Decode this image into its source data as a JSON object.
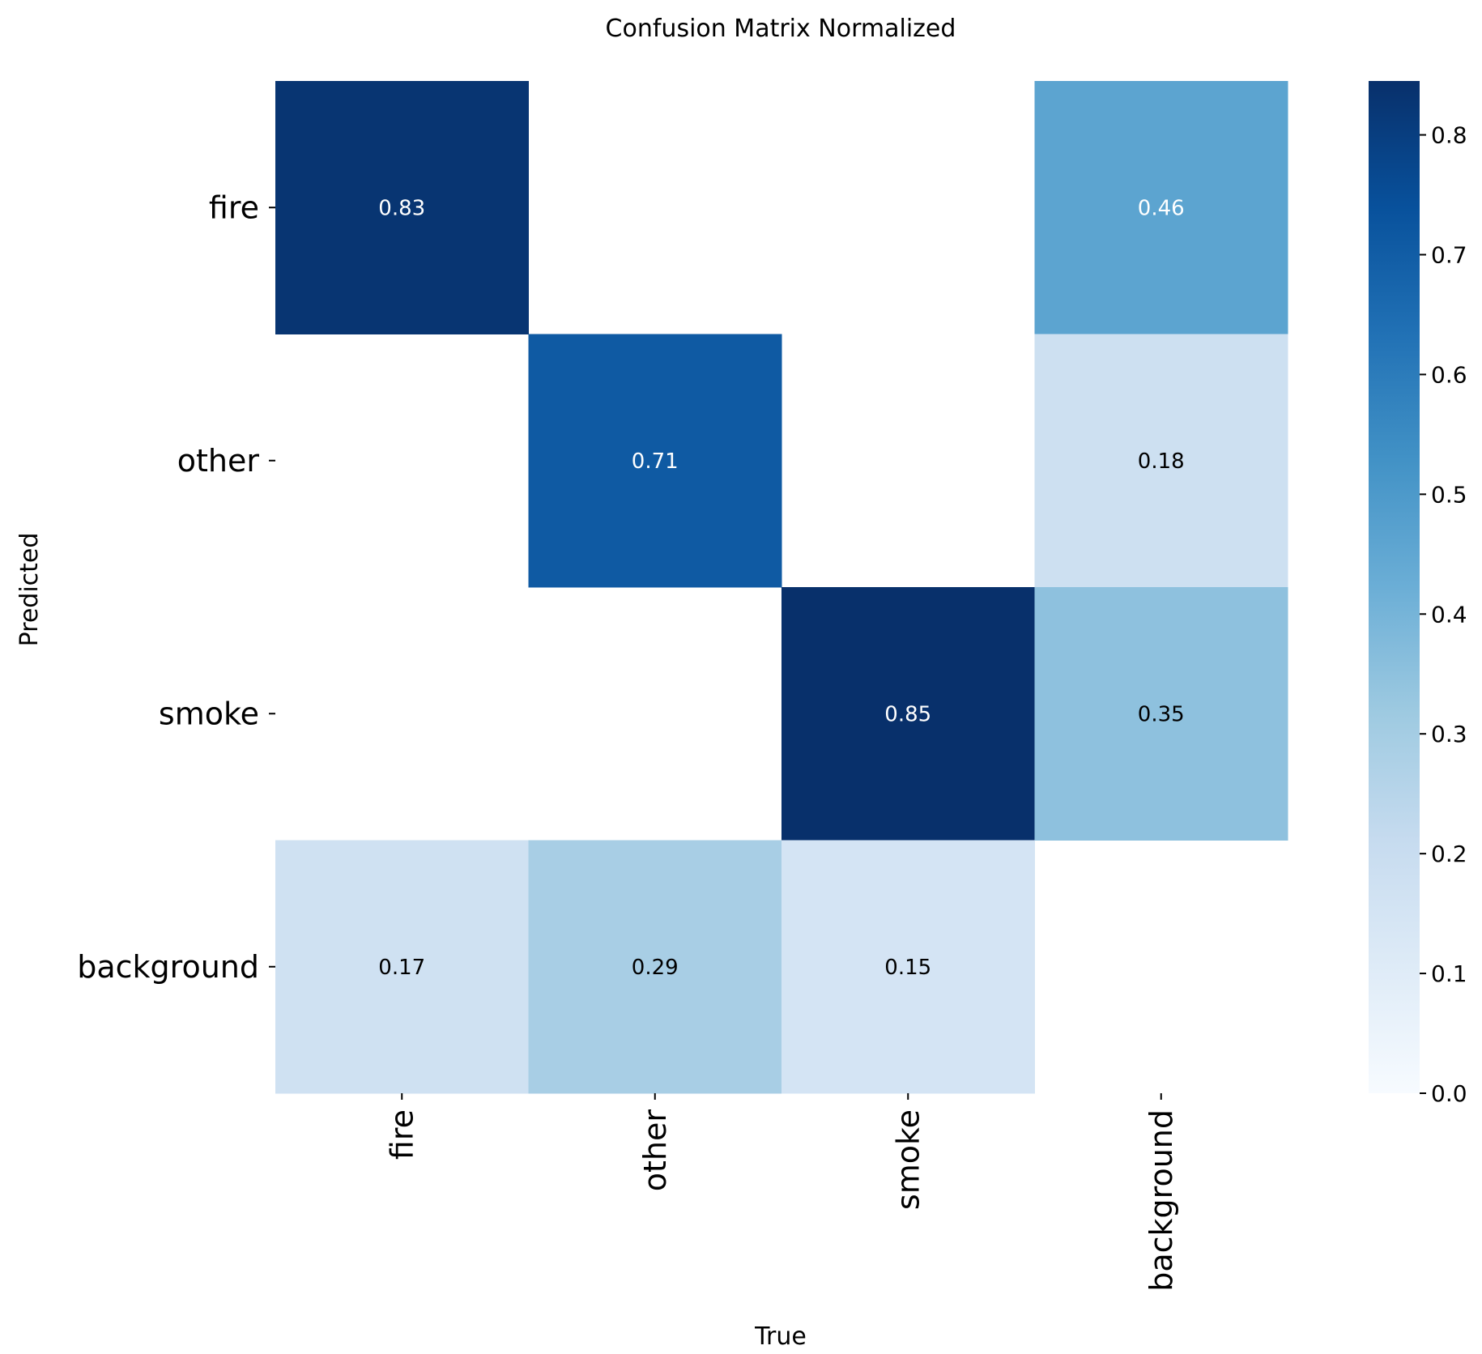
{
  "chart_data": {
    "type": "heatmap",
    "title": "Confusion Matrix Normalized",
    "xlabel": "True",
    "ylabel": "Predicted",
    "x_categories": [
      "fire",
      "other",
      "smoke",
      "background"
    ],
    "y_categories": [
      "fire",
      "other",
      "smoke",
      "background"
    ],
    "values": [
      [
        0.83,
        null,
        null,
        0.46
      ],
      [
        null,
        0.71,
        null,
        0.18
      ],
      [
        null,
        null,
        0.85,
        0.35
      ],
      [
        0.17,
        0.29,
        0.15,
        null
      ]
    ],
    "colormap": "Blues",
    "colorbar": {
      "range": [
        0.0,
        0.845
      ],
      "ticks": [
        0.0,
        0.1,
        0.2,
        0.3,
        0.4,
        0.5,
        0.6,
        0.7,
        0.8
      ],
      "tick_labels": [
        "0.0",
        "0.1",
        "0.2",
        "0.3",
        "0.4",
        "0.5",
        "0.6",
        "0.7",
        "0.8"
      ]
    },
    "colors": {
      "cmap_stops": [
        "#f7fbff",
        "#deebf7",
        "#c6dbef",
        "#9ecae1",
        "#6baed6",
        "#4292c6",
        "#2171b5",
        "#08519c",
        "#08306b"
      ],
      "text_dark": "#000000",
      "text_light": "#ffffff"
    }
  }
}
